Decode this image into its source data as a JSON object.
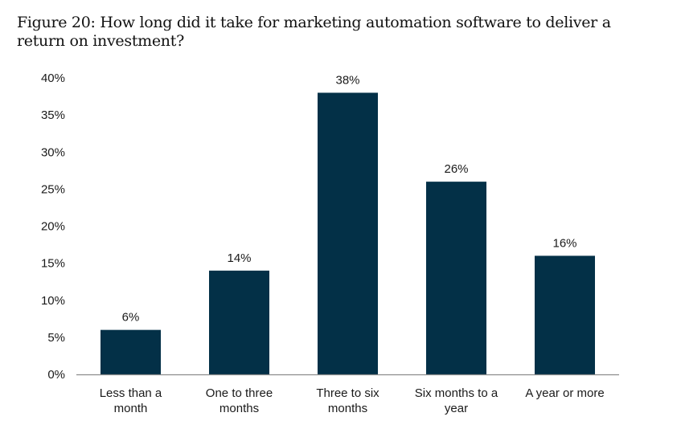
{
  "chart_data": {
    "type": "bar",
    "title": "Figure 20: How long did it take for marketing automation software to deliver a return on investment?",
    "title_lines": [
      "Figure 20: How long did it take for marketing automation software to deliver a",
      "return on investment?"
    ],
    "categories": [
      "Less than a month",
      "One to three months",
      "Three to six months",
      "Six months to a year",
      "A year or more"
    ],
    "category_lines": [
      [
        "Less than a",
        "month"
      ],
      [
        "One to three",
        "months"
      ],
      [
        "Three to six",
        "months"
      ],
      [
        "Six months to a",
        "year"
      ],
      [
        "A year or more"
      ]
    ],
    "values": [
      6,
      14,
      38,
      26,
      16
    ],
    "data_labels": [
      "6%",
      "14%",
      "38%",
      "26%",
      "16%"
    ],
    "xlabel": "",
    "ylabel": "",
    "ylim": [
      0,
      40
    ],
    "yticks": [
      0,
      5,
      10,
      15,
      20,
      25,
      30,
      35,
      40
    ],
    "ytick_labels": [
      "0%",
      "5%",
      "10%",
      "15%",
      "20%",
      "25%",
      "30%",
      "35%",
      "40%"
    ],
    "grid": false,
    "legend": "none",
    "bar_color": "#033047",
    "axis_color": "#8c8c8c"
  }
}
